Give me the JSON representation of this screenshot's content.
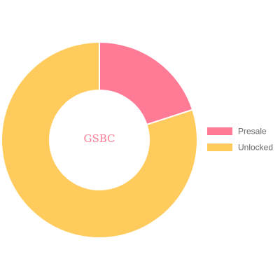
{
  "chart_data": {
    "type": "doughnut",
    "center_label": "GSBC",
    "legend_position": "right",
    "series": [
      {
        "categories": [
          "Presale",
          "Unlocked"
        ],
        "values": [
          20,
          80
        ],
        "colors": [
          "#FF7A94",
          "#FFCB5C"
        ]
      }
    ]
  },
  "colors": {
    "center_label": "#FF7A94",
    "slice_border": "#ffffff"
  }
}
